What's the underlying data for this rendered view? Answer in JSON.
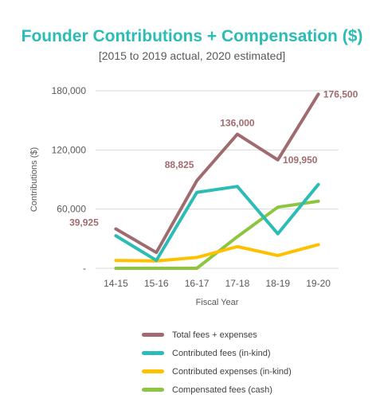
{
  "chart_data": {
    "type": "line",
    "title": "Founder Contributions + Compensation ($)",
    "subtitle": "[2015 to 2019 actual, 2020 estimated]",
    "xlabel": "Fiscal Year",
    "ylabel": "Contributions ($)",
    "categories": [
      "14-15",
      "15-16",
      "16-17",
      "17-18",
      "18-19",
      "19-20"
    ],
    "ylim": [
      0,
      180000
    ],
    "yticks": [
      0,
      60000,
      120000,
      180000
    ],
    "ytick_labels": [
      "-",
      "60,000",
      "120,000",
      "180,000"
    ],
    "grid": true,
    "legend_position": "bottom",
    "series": [
      {
        "name": "Total fees + expenses",
        "color": "#a06b70",
        "values": [
          39925,
          16000,
          88825,
          136000,
          109950,
          176500
        ],
        "data_labels": [
          "39,925",
          null,
          "88,825",
          "136,000",
          "109,950",
          "176,500"
        ]
      },
      {
        "name": "Contributed fees (in-kind)",
        "color": "#2bbcb5",
        "values": [
          33000,
          8000,
          77000,
          83000,
          35000,
          85000
        ]
      },
      {
        "name": "Contributed expenses (in-kind)",
        "color": "#ffc000",
        "values": [
          8000,
          7500,
          11000,
          22000,
          13000,
          24000
        ]
      },
      {
        "name": "Compensated fees (cash)",
        "color": "#8cc63f",
        "values": [
          0,
          0,
          0,
          32000,
          62000,
          68000
        ]
      }
    ]
  }
}
